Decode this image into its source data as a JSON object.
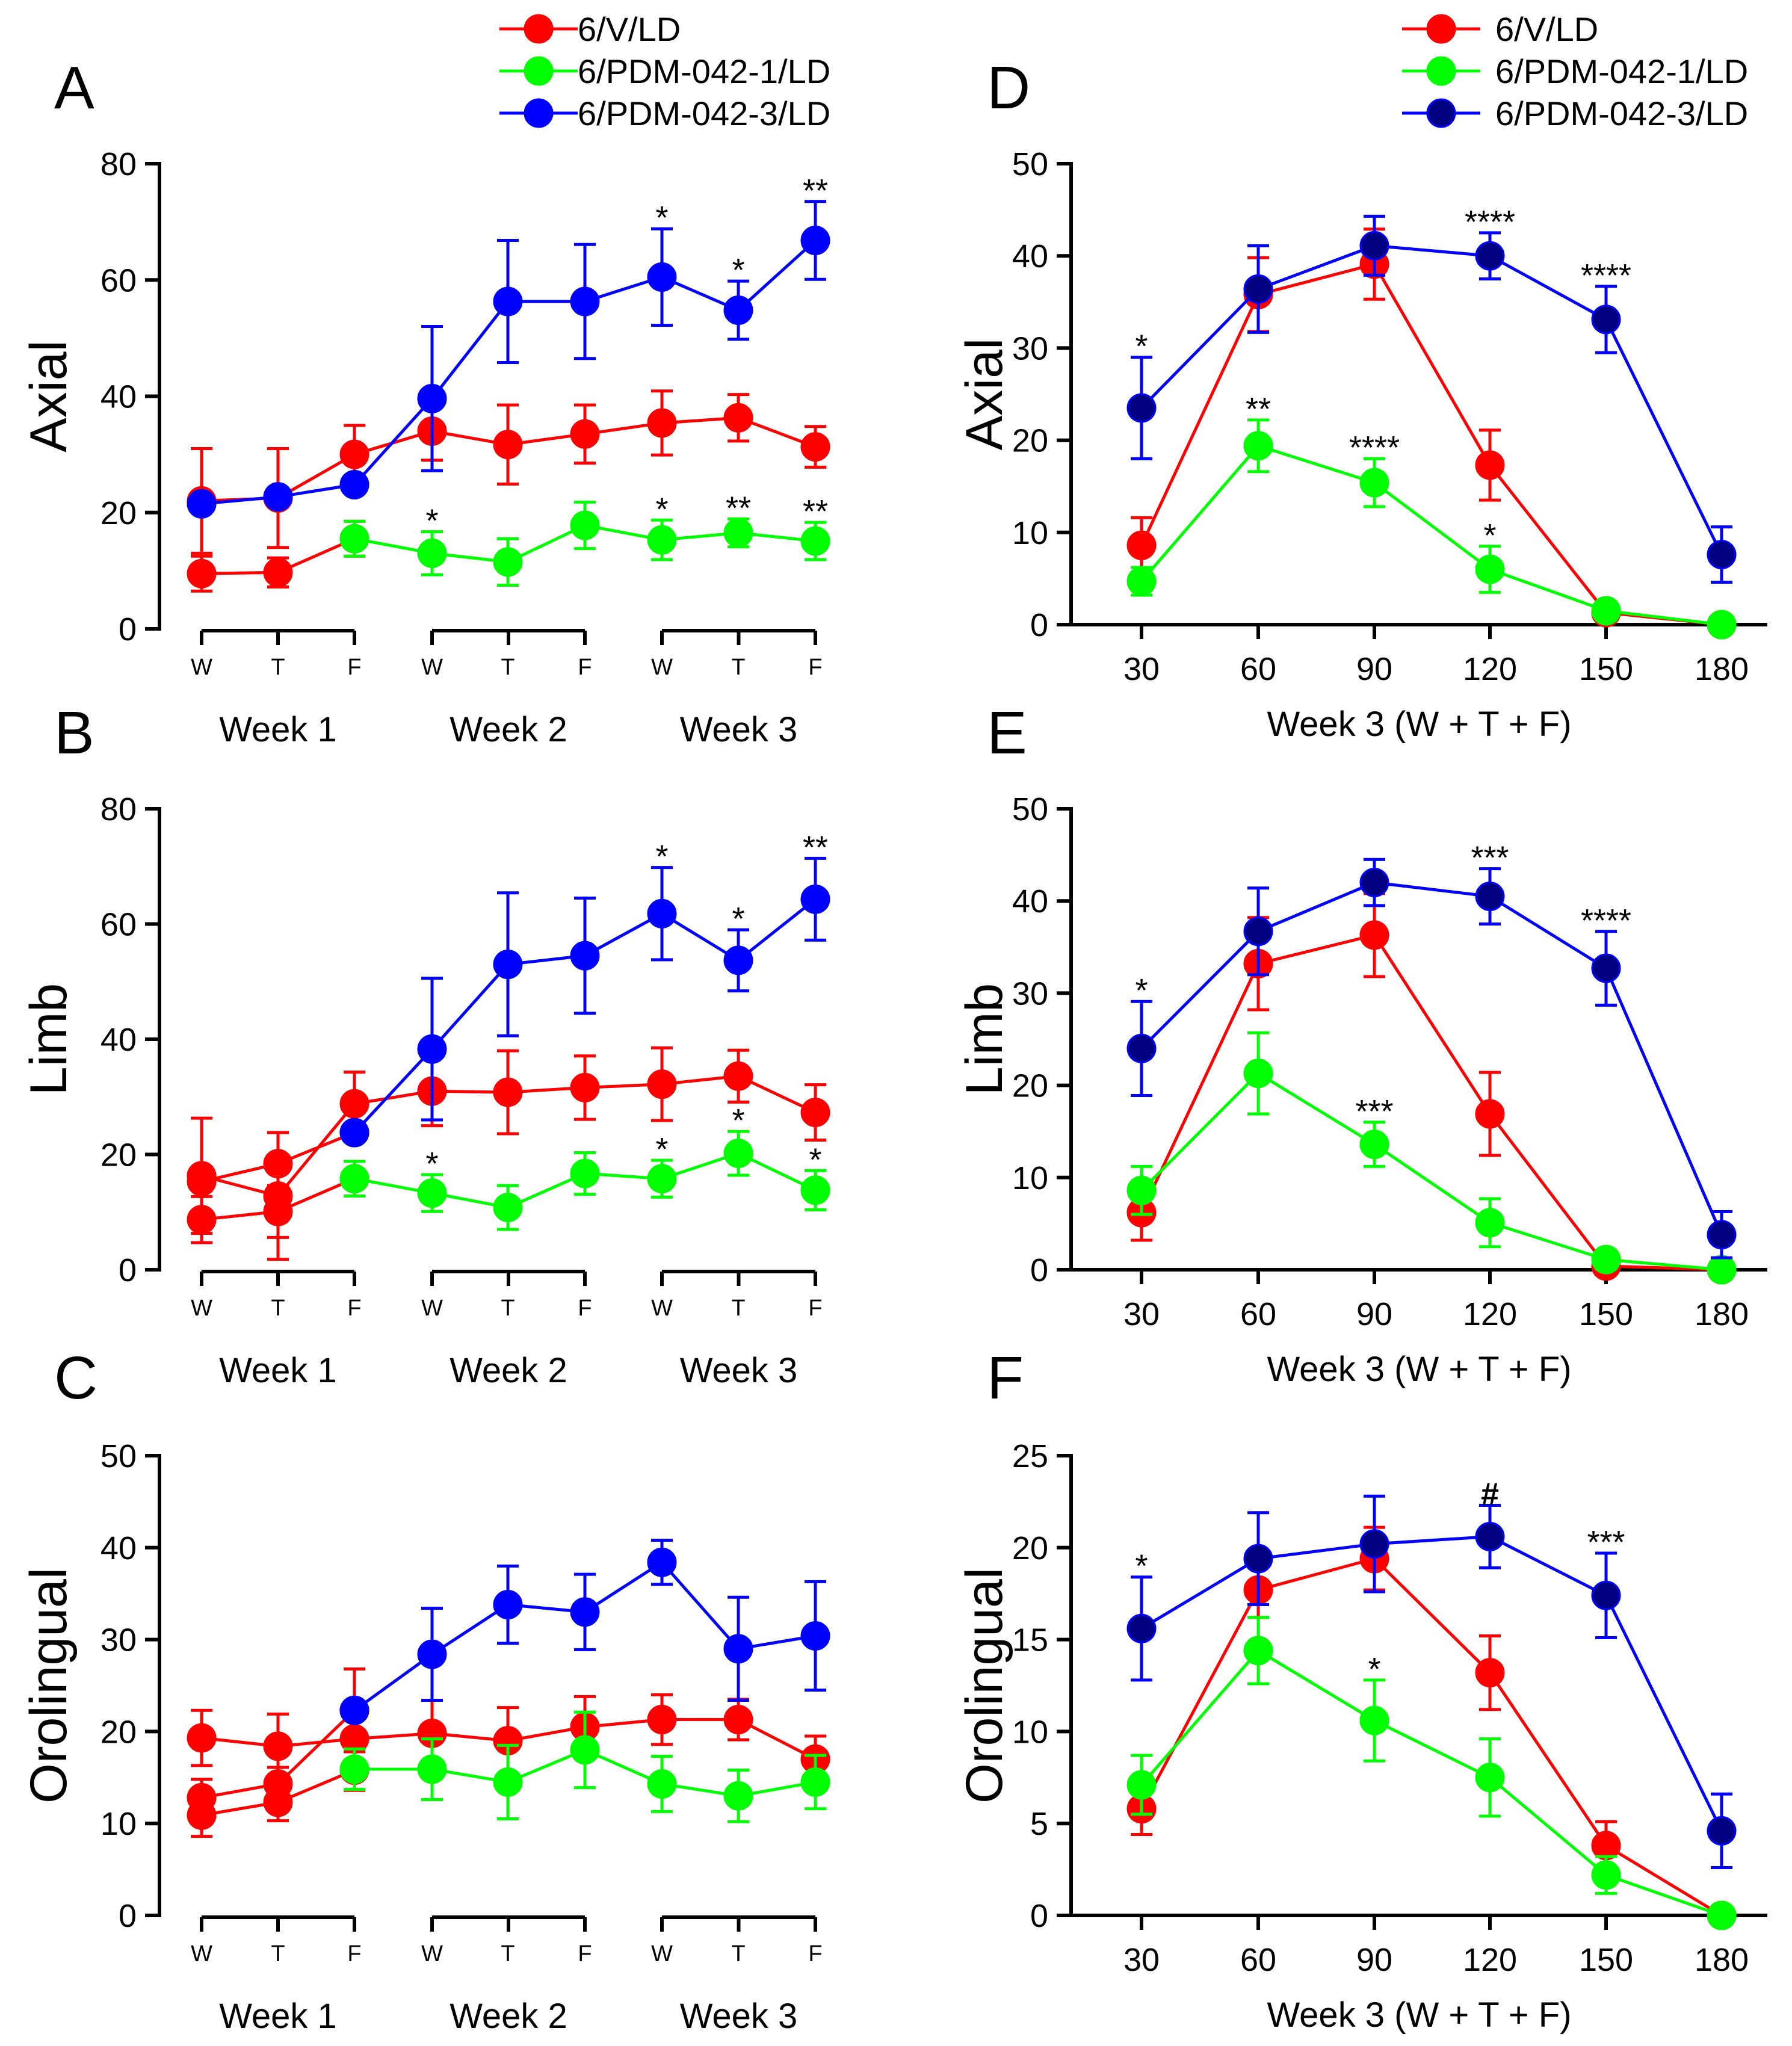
{
  "colors": {
    "red": "#ff0000",
    "green": "#00ff00",
    "blue": "#0000ff",
    "navy": "#000080"
  },
  "legends": [
    {
      "items": [
        {
          "label": "6/V/LD",
          "color": "#ff0000",
          "fill": "#ff0000"
        },
        {
          "label": "6/PDM-042-1/LD",
          "color": "#00ff00",
          "fill": "#00ff00"
        },
        {
          "label": "6/PDM-042-3/LD",
          "color": "#0000ff",
          "fill": "#0000ff"
        }
      ]
    },
    {
      "items": [
        {
          "label": "6/V/LD",
          "color": "#ff0000",
          "fill": "#ff0000"
        },
        {
          "label": "6/PDM-042-1/LD",
          "color": "#00ff00",
          "fill": "#00ff00"
        },
        {
          "label": "6/PDM-042-3/LD",
          "color": "#0000ff",
          "fill": "#000080"
        }
      ]
    }
  ],
  "chart_data": [
    {
      "panel": "A",
      "type": "line",
      "ylabel": "Axial",
      "ylim": [
        0,
        80
      ],
      "yticks": [
        0,
        20,
        40,
        60,
        80
      ],
      "x": [
        "W",
        "T",
        "F",
        "W",
        "T",
        "F",
        "W",
        "T",
        "F"
      ],
      "week_labels": [
        "Week 1",
        "Week 2",
        "Week 3"
      ],
      "series": [
        {
          "name": "6/V/LD (a)",
          "color": "#ff0000",
          "fill": "#ff0000",
          "x": [
            0,
            1,
            2,
            3,
            4,
            5,
            6,
            7,
            8
          ],
          "values": [
            22,
            22.5,
            30,
            34,
            31.7,
            33.5,
            35.4,
            36.3,
            31.3
          ],
          "err": [
            9,
            8.5,
            5,
            5,
            6.8,
            5,
            5.5,
            4,
            3.5
          ]
        },
        {
          "name": "6/V/LD (b)",
          "color": "#ff0000",
          "fill": "#ff0000",
          "x": [
            0,
            1,
            2
          ],
          "values": [
            9.5,
            9.7,
            15.5
          ],
          "err": [
            3,
            2.5,
            3
          ]
        },
        {
          "name": "6/PDM-042-1/LD",
          "color": "#00ff00",
          "fill": "#00ff00",
          "x": [
            2,
            3,
            4,
            5,
            6,
            7,
            8
          ],
          "values": [
            15.5,
            13,
            11.5,
            17.8,
            15.3,
            16.5,
            15.1
          ],
          "err": [
            3,
            3.7,
            4,
            4,
            3.4,
            2.4,
            3.2
          ]
        },
        {
          "name": "6/PDM-042-3/LD",
          "color": "#0000ff",
          "fill": "#0000ff",
          "x": [
            0,
            1,
            2,
            3,
            4,
            5,
            6,
            7,
            8
          ],
          "values": [
            21.5,
            22.7,
            24.8,
            39.6,
            56.3,
            56.3,
            60.5,
            54.8,
            66.8
          ],
          "err": [
            0,
            0,
            0,
            12.4,
            10.5,
            9.8,
            8.3,
            5,
            6.7
          ],
          "err_from": 3
        }
      ],
      "annotations": [
        {
          "x": 6,
          "y": 60.5,
          "err": 8.3,
          "text": "*"
        },
        {
          "x": 7,
          "y": 54.8,
          "err": 5,
          "text": "*"
        },
        {
          "x": 8,
          "y": 66.8,
          "err": 6.7,
          "text": "**"
        },
        {
          "x": 3,
          "y": 13,
          "err": 3.7,
          "text": "*"
        },
        {
          "x": 6,
          "y": 15.3,
          "err": 3.4,
          "text": "*"
        },
        {
          "x": 7,
          "y": 16.5,
          "err": 2.4,
          "text": "**"
        },
        {
          "x": 8,
          "y": 15.1,
          "err": 3.2,
          "text": "**"
        }
      ]
    },
    {
      "panel": "B",
      "type": "line",
      "ylabel": "Limb",
      "ylim": [
        0,
        80
      ],
      "yticks": [
        0,
        20,
        40,
        60,
        80
      ],
      "x": [
        "W",
        "T",
        "F",
        "W",
        "T",
        "F",
        "W",
        "T",
        "F"
      ],
      "week_labels": [
        "Week 1",
        "Week 2",
        "Week 3"
      ],
      "series": [
        {
          "name": "6/V/LD (a)",
          "color": "#ff0000",
          "fill": "#ff0000",
          "x": [
            0,
            1,
            2,
            3,
            4,
            5,
            6,
            7,
            8
          ],
          "values": [
            16.3,
            12.8,
            28.8,
            31,
            30.8,
            31.6,
            32.2,
            33.6,
            27.3
          ],
          "err": [
            10,
            11,
            5.5,
            6,
            7.2,
            5.5,
            6.3,
            4.5,
            4.8
          ]
        },
        {
          "name": "6/V/LD (b)",
          "color": "#ff0000",
          "fill": "#ff0000",
          "x": [
            0,
            1,
            2
          ],
          "values": [
            8.7,
            10.1,
            15.8
          ],
          "err": [
            4,
            4.5,
            3
          ]
        },
        {
          "name": "6/V/LD (c)",
          "color": "#ff0000",
          "fill": "#ff0000",
          "x": [
            0,
            1,
            2
          ],
          "values": [
            15.3,
            18.4,
            23.8
          ],
          "err": [
            0,
            0,
            0
          ]
        },
        {
          "name": "6/PDM-042-1/LD",
          "color": "#00ff00",
          "fill": "#00ff00",
          "x": [
            2,
            3,
            4,
            5,
            6,
            7,
            8
          ],
          "values": [
            15.8,
            13.3,
            10.8,
            16.7,
            15.8,
            20.2,
            13.8
          ],
          "err": [
            3,
            3.2,
            3.8,
            3.6,
            3.2,
            3.8,
            3.4
          ]
        },
        {
          "name": "6/PDM-042-3/LD",
          "color": "#0000ff",
          "fill": "#0000ff",
          "x": [
            2,
            3,
            4,
            5,
            6,
            7,
            8
          ],
          "values": [
            23.8,
            38.3,
            53,
            54.5,
            61.8,
            53.7,
            64.3
          ],
          "err": [
            0,
            12.3,
            12.4,
            10,
            8,
            5.3,
            7.1
          ],
          "err_from": 3
        }
      ],
      "annotations": [
        {
          "x": 6,
          "y": 61.8,
          "err": 8,
          "text": "*"
        },
        {
          "x": 7,
          "y": 53.7,
          "err": 5.3,
          "text": "*"
        },
        {
          "x": 8,
          "y": 64.3,
          "err": 7.1,
          "text": "**"
        },
        {
          "x": 3,
          "y": 13.3,
          "err": 3.2,
          "text": "*"
        },
        {
          "x": 6,
          "y": 15.8,
          "err": 3.2,
          "text": "*"
        },
        {
          "x": 7,
          "y": 20.2,
          "err": 3.8,
          "text": "*"
        },
        {
          "x": 8,
          "y": 13.8,
          "err": 3.4,
          "text": "*"
        }
      ]
    },
    {
      "panel": "C",
      "type": "line",
      "ylabel": "Orolingual",
      "ylim": [
        0,
        50
      ],
      "yticks": [
        0,
        10,
        20,
        30,
        40,
        50
      ],
      "x": [
        "W",
        "T",
        "F",
        "W",
        "T",
        "F",
        "W",
        "T",
        "F"
      ],
      "week_labels": [
        "Week 1",
        "Week 2",
        "Week 3"
      ],
      "series": [
        {
          "name": "6/V/LD (a)",
          "color": "#ff0000",
          "fill": "#ff0000",
          "x": [
            0,
            1,
            2,
            3,
            4,
            5,
            6,
            7,
            8
          ],
          "values": [
            19.3,
            18.4,
            19.2,
            19.8,
            19,
            20.5,
            21.3,
            21.3,
            17
          ],
          "err": [
            3,
            3.5,
            2.8,
            3.6,
            3.6,
            3.3,
            2.7,
            2.2,
            2.5
          ]
        },
        {
          "name": "6/V/LD (b)",
          "color": "#ff0000",
          "fill": "#ff0000",
          "x": [
            0,
            1,
            2
          ],
          "values": [
            10.9,
            12.3,
            15.8
          ],
          "err": [
            2.3,
            2,
            2.2
          ]
        },
        {
          "name": "6/V/LD (c)",
          "color": "#ff0000",
          "fill": "#ff0000",
          "x": [
            0,
            1,
            2
          ],
          "values": [
            12.8,
            14.3,
            22.3
          ],
          "err": [
            2,
            1.8,
            4.5
          ]
        },
        {
          "name": "6/PDM-042-1/LD",
          "color": "#00ff00",
          "fill": "#00ff00",
          "x": [
            2,
            3,
            4,
            5,
            6,
            7,
            8
          ],
          "values": [
            15.9,
            15.9,
            14.5,
            18,
            14.3,
            13,
            14.5
          ],
          "err": [
            2.2,
            3.3,
            4,
            4.1,
            3,
            2.8,
            2.9
          ]
        },
        {
          "name": "6/PDM-042-3/LD",
          "color": "#0000ff",
          "fill": "#0000ff",
          "x": [
            2,
            3,
            4,
            5,
            6,
            7,
            8
          ],
          "values": [
            22.3,
            28.4,
            33.8,
            33,
            38.4,
            29,
            30.4
          ],
          "err": [
            0,
            5,
            4.2,
            4.1,
            2.4,
            5.6,
            5.9
          ],
          "err_from": 3
        }
      ],
      "annotations": []
    },
    {
      "panel": "D",
      "type": "line",
      "ylabel": "Axial",
      "xlabel": "Week 3 (W + T + F)",
      "ylim": [
        0,
        50
      ],
      "yticks": [
        0,
        10,
        20,
        30,
        40,
        50
      ],
      "x": [
        30,
        60,
        90,
        120,
        150,
        180
      ],
      "series": [
        {
          "name": "6/V/LD",
          "color": "#ff0000",
          "fill": "#ff0000",
          "values": [
            8.6,
            35.8,
            39.1,
            17.3,
            1.3,
            0
          ],
          "err": [
            3,
            4,
            3.8,
            3.8,
            1,
            0
          ]
        },
        {
          "name": "6/PDM-042-1/LD",
          "color": "#00ff00",
          "fill": "#00ff00",
          "values": [
            4.7,
            19.4,
            15.4,
            6,
            1.5,
            0
          ],
          "err": [
            1.5,
            2.8,
            2.6,
            2.5,
            1,
            0
          ]
        },
        {
          "name": "6/PDM-042-3/LD",
          "color": "#0000ff",
          "fill": "#000080",
          "values": [
            23.5,
            36.4,
            41.1,
            40,
            33.1,
            7.6
          ],
          "err": [
            5.5,
            4.7,
            3.2,
            2.5,
            3.6,
            3
          ]
        }
      ],
      "annotations": [
        {
          "x": 0,
          "y": 23.5,
          "err": 5.5,
          "text": "*"
        },
        {
          "x": 3,
          "y": 40,
          "err": 2.5,
          "text": "****"
        },
        {
          "x": 4,
          "y": 33.1,
          "err": 3.6,
          "text": "****"
        },
        {
          "x": 1,
          "y": 19.4,
          "err": 2.8,
          "text": "**"
        },
        {
          "x": 2,
          "y": 15.4,
          "err": 2.6,
          "text": "****"
        },
        {
          "x": 3,
          "y": 6,
          "err": 2.5,
          "text": "*"
        }
      ]
    },
    {
      "panel": "E",
      "type": "line",
      "ylabel": "Limb",
      "xlabel": "Week 3 (W + T + F)",
      "ylim": [
        0,
        50
      ],
      "yticks": [
        0,
        10,
        20,
        30,
        40,
        50
      ],
      "x": [
        30,
        60,
        90,
        120,
        150,
        180
      ],
      "series": [
        {
          "name": "6/V/LD",
          "color": "#ff0000",
          "fill": "#ff0000",
          "values": [
            6.2,
            33.2,
            36.3,
            16.9,
            0.4,
            0
          ],
          "err": [
            3,
            5,
            4.5,
            4.5,
            0.5,
            0
          ]
        },
        {
          "name": "6/PDM-042-1/LD",
          "color": "#00ff00",
          "fill": "#00ff00",
          "values": [
            8.6,
            21.3,
            13.6,
            5.1,
            1.1,
            0
          ],
          "err": [
            2.6,
            4.4,
            2.4,
            2.6,
            1,
            0
          ]
        },
        {
          "name": "6/PDM-042-3/LD",
          "color": "#0000ff",
          "fill": "#000080",
          "values": [
            24,
            36.7,
            42,
            40.5,
            32.7,
            3.8
          ],
          "err": [
            5.1,
            4.7,
            2.5,
            3,
            4,
            2.5
          ]
        }
      ],
      "annotations": [
        {
          "x": 0,
          "y": 24,
          "err": 5.1,
          "text": "*"
        },
        {
          "x": 3,
          "y": 40.5,
          "err": 3,
          "text": "***"
        },
        {
          "x": 4,
          "y": 32.7,
          "err": 4,
          "text": "****"
        },
        {
          "x": 2,
          "y": 13.6,
          "err": 2.4,
          "text": "***"
        }
      ]
    },
    {
      "panel": "F",
      "type": "line",
      "ylabel": "Orolingual",
      "xlabel": "Week 3 (W + T + F)",
      "ylim": [
        0,
        25
      ],
      "yticks": [
        0,
        5,
        10,
        15,
        20,
        25
      ],
      "x": [
        30,
        60,
        90,
        120,
        150,
        180
      ],
      "series": [
        {
          "name": "6/V/LD",
          "color": "#ff0000",
          "fill": "#ff0000",
          "values": [
            5.8,
            17.7,
            19.4,
            13.2,
            3.8,
            0
          ],
          "err": [
            1.4,
            1.5,
            1.7,
            2,
            1.3,
            0
          ]
        },
        {
          "name": "6/PDM-042-1/LD",
          "color": "#00ff00",
          "fill": "#00ff00",
          "values": [
            7.1,
            14.4,
            10.6,
            7.5,
            2.2,
            0
          ],
          "err": [
            1.6,
            1.8,
            2.2,
            2.1,
            1,
            0
          ]
        },
        {
          "name": "6/PDM-042-3/LD",
          "color": "#0000ff",
          "fill": "#000080",
          "values": [
            15.6,
            19.4,
            20.2,
            20.6,
            17.4,
            4.6
          ],
          "err": [
            2.8,
            2.5,
            2.6,
            1.7,
            2.3,
            2
          ]
        }
      ],
      "annotations": [
        {
          "x": 0,
          "y": 15.6,
          "err": 2.8,
          "text": "*"
        },
        {
          "x": 3,
          "y": 20.6,
          "err": 1.7,
          "text": "#"
        },
        {
          "x": 4,
          "y": 17.4,
          "err": 2.3,
          "text": "***"
        },
        {
          "x": 2,
          "y": 10.6,
          "err": 2.2,
          "text": "*"
        }
      ]
    }
  ]
}
